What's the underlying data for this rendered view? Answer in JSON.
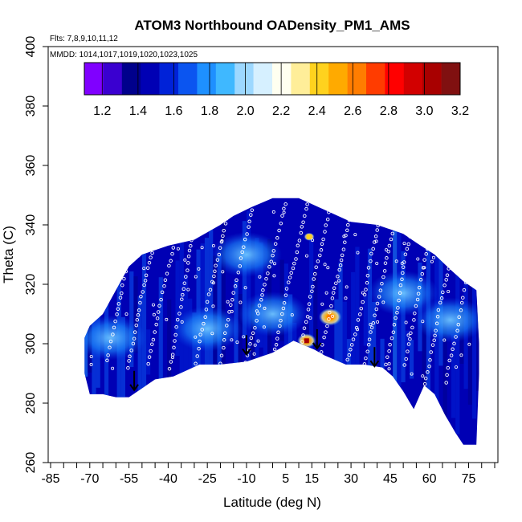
{
  "chart_data": {
    "type": "heatmap",
    "title": "ATOM3 Northbound OADensity_PM1_AMS",
    "flights_note": "Flts: 7,8,9,10,11,12",
    "dates_note": "MMDD: 1014,1017,1019,1020,1023,1025",
    "xlabel": "Latitude (deg N)",
    "ylabel": "Theta (C)",
    "xlim": [
      -85,
      85
    ],
    "ylim": [
      260,
      400
    ],
    "x_tick_labels": [
      "-85",
      "-70",
      "-55",
      "-40",
      "-25",
      "-10",
      "5",
      "15",
      "30",
      "45",
      "60",
      "75"
    ],
    "x_tick_values": [
      -85,
      -70,
      -55,
      -40,
      -25,
      -10,
      5,
      15,
      30,
      45,
      60,
      75
    ],
    "x_minor_ticks": [
      -80,
      -75,
      -65,
      -60,
      -50,
      -45,
      -35,
      -30,
      -20,
      -15,
      -5,
      0,
      10,
      20,
      25,
      35,
      40,
      50,
      55,
      65,
      70,
      80,
      85
    ],
    "y_ticks": [
      260,
      280,
      300,
      320,
      340,
      360,
      380,
      400
    ],
    "colorbar": {
      "range": [
        1.1,
        3.2
      ],
      "tick_labels": [
        "1.2",
        "1.4",
        "1.6",
        "1.8",
        "2.0",
        "2.2",
        "2.4",
        "2.6",
        "2.8",
        "3.0",
        "3.2"
      ],
      "tick_values": [
        1.2,
        1.4,
        1.6,
        1.8,
        2.0,
        2.2,
        2.4,
        2.6,
        2.8,
        3.0,
        3.2
      ],
      "colors": [
        "#8000ff",
        "#3a00d0",
        "#00008c",
        "#0000b4",
        "#0022d8",
        "#0b55f0",
        "#1e90ff",
        "#3fb8ff",
        "#9dd8ff",
        "#d6f0ff",
        "#fffff0",
        "#ffee99",
        "#ffd21e",
        "#ffaa00",
        "#ff7d00",
        "#ff3c00",
        "#ff0000",
        "#d20000",
        "#a80000",
        "#801010"
      ]
    },
    "arrows": [
      {
        "lat": -53,
        "theta": 286
      },
      {
        "lat": -10,
        "theta": 298
      },
      {
        "lat": 17,
        "theta": 300
      },
      {
        "lat": 39,
        "theta": 294
      }
    ],
    "envelope_top": [
      [
        -72,
        302
      ],
      [
        -70,
        306
      ],
      [
        -65,
        310
      ],
      [
        -60,
        318
      ],
      [
        -55,
        326
      ],
      [
        -50,
        330
      ],
      [
        -40,
        333
      ],
      [
        -30,
        335
      ],
      [
        -20,
        340
      ],
      [
        -15,
        343
      ],
      [
        -8,
        346
      ],
      [
        0,
        349
      ],
      [
        10,
        349
      ],
      [
        20,
        345
      ],
      [
        30,
        341
      ],
      [
        40,
        340
      ],
      [
        50,
        337
      ],
      [
        55,
        334
      ],
      [
        62,
        330
      ],
      [
        68,
        325
      ],
      [
        73,
        321
      ],
      [
        78,
        318
      ],
      [
        79,
        300
      ]
    ],
    "envelope_bottom": [
      [
        79,
        290
      ],
      [
        78,
        266
      ],
      [
        73,
        266
      ],
      [
        70,
        270
      ],
      [
        66,
        276
      ],
      [
        62,
        283
      ],
      [
        58,
        286
      ],
      [
        54,
        278
      ],
      [
        50,
        284
      ],
      [
        46,
        289
      ],
      [
        42,
        292
      ],
      [
        35,
        293
      ],
      [
        28,
        293
      ],
      [
        20,
        296
      ],
      [
        16,
        298
      ],
      [
        8,
        301
      ],
      [
        0,
        297
      ],
      [
        -10,
        294
      ],
      [
        -20,
        293
      ],
      [
        -28,
        293
      ],
      [
        -38,
        289
      ],
      [
        -45,
        288
      ],
      [
        -50,
        285
      ],
      [
        -55,
        282
      ],
      [
        -60,
        282
      ],
      [
        -65,
        283
      ],
      [
        -70,
        283
      ],
      [
        -72,
        290
      ]
    ],
    "hotspots": [
      {
        "lat": 13,
        "theta": 301,
        "value": 3.0
      },
      {
        "lat": 22,
        "theta": 309,
        "value": 2.6
      },
      {
        "lat": 14,
        "theta": 336,
        "value": 2.4
      }
    ],
    "light_patches": [
      {
        "lat": -25,
        "theta": 305,
        "value": 1.9
      },
      {
        "lat": 0,
        "theta": 310,
        "value": 2.0
      },
      {
        "lat": -10,
        "theta": 330,
        "value": 1.8
      },
      {
        "lat": 50,
        "theta": 317,
        "value": 1.8
      },
      {
        "lat": -62,
        "theta": 302,
        "value": 1.7
      },
      {
        "lat": 68,
        "theta": 308,
        "value": 1.7
      }
    ]
  }
}
